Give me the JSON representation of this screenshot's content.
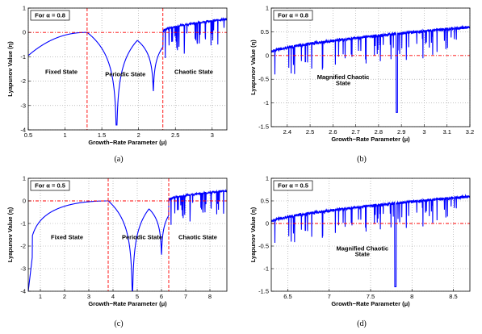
{
  "chart_data": [
    {
      "type": "line",
      "panel_caption": "(a)",
      "legend_box": "For α = 0.8",
      "xlabel": "Growth−Rate Parameter (μ)",
      "ylabel": "Lyapunov Value (η)",
      "xlim": [
        0.5,
        3.2
      ],
      "ylim": [
        -4,
        1
      ],
      "xticks": [
        "0.5",
        "1",
        "1.5",
        "2",
        "2.5",
        "3"
      ],
      "xtick_values": [
        0.5,
        1,
        1.5,
        2,
        2.5,
        3
      ],
      "yticks": [
        "1",
        "0",
        "-1",
        "-2",
        "-3",
        "-4"
      ],
      "ytick_values": [
        1,
        0,
        -1,
        -2,
        -3,
        -4
      ],
      "grid": true,
      "line_color": "#0000ff",
      "ref_color": "#ff0000",
      "ref_hline": 0,
      "ref_vlines": [
        1.3,
        2.33
      ],
      "regions": [
        {
          "label": "Fixed State",
          "x": 0.95,
          "y": -1.7
        },
        {
          "label": "Periodic State",
          "x": 1.82,
          "y": -1.8
        },
        {
          "label": "Chaotic State",
          "x": 2.75,
          "y": -1.7
        }
      ],
      "model": {
        "peak": 1.3,
        "dip": 1.7,
        "second_dip": 2.2,
        "chaos_start": 2.33,
        "left_value": -0.95,
        "min_value": -3.8,
        "chaos_top": 0.55
      }
    },
    {
      "type": "line",
      "panel_caption": "(b)",
      "legend_box": "For α = 0.8",
      "xlabel": "Growth−Rate Parameter (μ)",
      "ylabel": "Lyapunov Value (η)",
      "xlim": [
        2.33,
        3.2
      ],
      "ylim": [
        -1.5,
        1
      ],
      "xticks": [
        "2.4",
        "2.5",
        "2.6",
        "2.7",
        "2.8",
        "2.9",
        "3",
        "3.1",
        "3.2"
      ],
      "xtick_values": [
        2.4,
        2.5,
        2.6,
        2.7,
        2.8,
        2.9,
        3,
        3.1,
        3.2
      ],
      "yticks": [
        "1",
        "0.5",
        "0",
        "-0.5",
        "-1",
        "-1.5"
      ],
      "ytick_values": [
        1,
        0.5,
        0,
        -0.5,
        -1,
        -1.5
      ],
      "grid": true,
      "line_color": "#0000ff",
      "ref_color": "#ff0000",
      "ref_hline": 0,
      "ref_vlines": [],
      "regions": [
        {
          "label": "Magnified Chaotic",
          "x": 2.645,
          "y": -0.5
        },
        {
          "label": "State",
          "x": 2.645,
          "y": -0.62
        }
      ],
      "model": {
        "start_value": 0.08,
        "end_value": 0.6,
        "deep_dip": 2.88,
        "deep_value": -1.2
      }
    },
    {
      "type": "line",
      "panel_caption": "(c)",
      "legend_box": "For α = 0.5",
      "xlabel": "Growth−Rate Parameter (μ)",
      "ylabel": "Lyapunov Value (η)",
      "xlim": [
        0.5,
        8.7
      ],
      "ylim": [
        -4,
        1
      ],
      "xticks": [
        "1",
        "2",
        "3",
        "4",
        "5",
        "6",
        "7",
        "8"
      ],
      "xtick_values": [
        1,
        2,
        3,
        4,
        5,
        6,
        7,
        8
      ],
      "yticks": [
        "1",
        "0",
        "-1",
        "-2",
        "-3",
        "-4"
      ],
      "ytick_values": [
        1,
        0,
        -1,
        -2,
        -3,
        -4
      ],
      "grid": true,
      "line_color": "#0000ff",
      "ref_color": "#ff0000",
      "ref_hline": 0,
      "ref_vlines": [
        3.8,
        6.3
      ],
      "regions": [
        {
          "label": "Fixed State",
          "x": 2.1,
          "y": -1.7
        },
        {
          "label": "Periodic State",
          "x": 5.2,
          "y": -1.7
        },
        {
          "label": "Chaotic State",
          "x": 7.5,
          "y": -1.7
        }
      ],
      "model": {
        "peak": 3.8,
        "dip": 4.8,
        "second_dip": 6.0,
        "chaos_start": 6.3,
        "left_value": -4.0,
        "min_value": -4.0,
        "chaos_top": 0.45
      }
    },
    {
      "type": "line",
      "panel_caption": "(d)",
      "legend_box": "For α = 0.5",
      "xlabel": "Growth−Rate Parameter (μ)",
      "ylabel": "Lyapunov Value (η)",
      "xlim": [
        6.3,
        8.7
      ],
      "ylim": [
        -1.5,
        1
      ],
      "xticks": [
        "6.5",
        "7",
        "7.5",
        "8",
        "8.5"
      ],
      "xtick_values": [
        6.5,
        7,
        7.5,
        8,
        8.5
      ],
      "yticks": [
        "1",
        "0.5",
        "0",
        "-0.5",
        "-1",
        "-1.5"
      ],
      "ytick_values": [
        1,
        0.5,
        0,
        -0.5,
        -1,
        -1.5
      ],
      "grid": true,
      "line_color": "#0000ff",
      "ref_color": "#ff0000",
      "ref_hline": 0,
      "ref_vlines": [],
      "regions": [
        {
          "label": "Magnified Chaotic",
          "x": 7.4,
          "y": -0.6
        },
        {
          "label": "State",
          "x": 7.4,
          "y": -0.72
        }
      ],
      "model": {
        "start_value": 0.05,
        "end_value": 0.6,
        "deep_dip": 7.8,
        "deep_value": -1.4
      }
    }
  ]
}
